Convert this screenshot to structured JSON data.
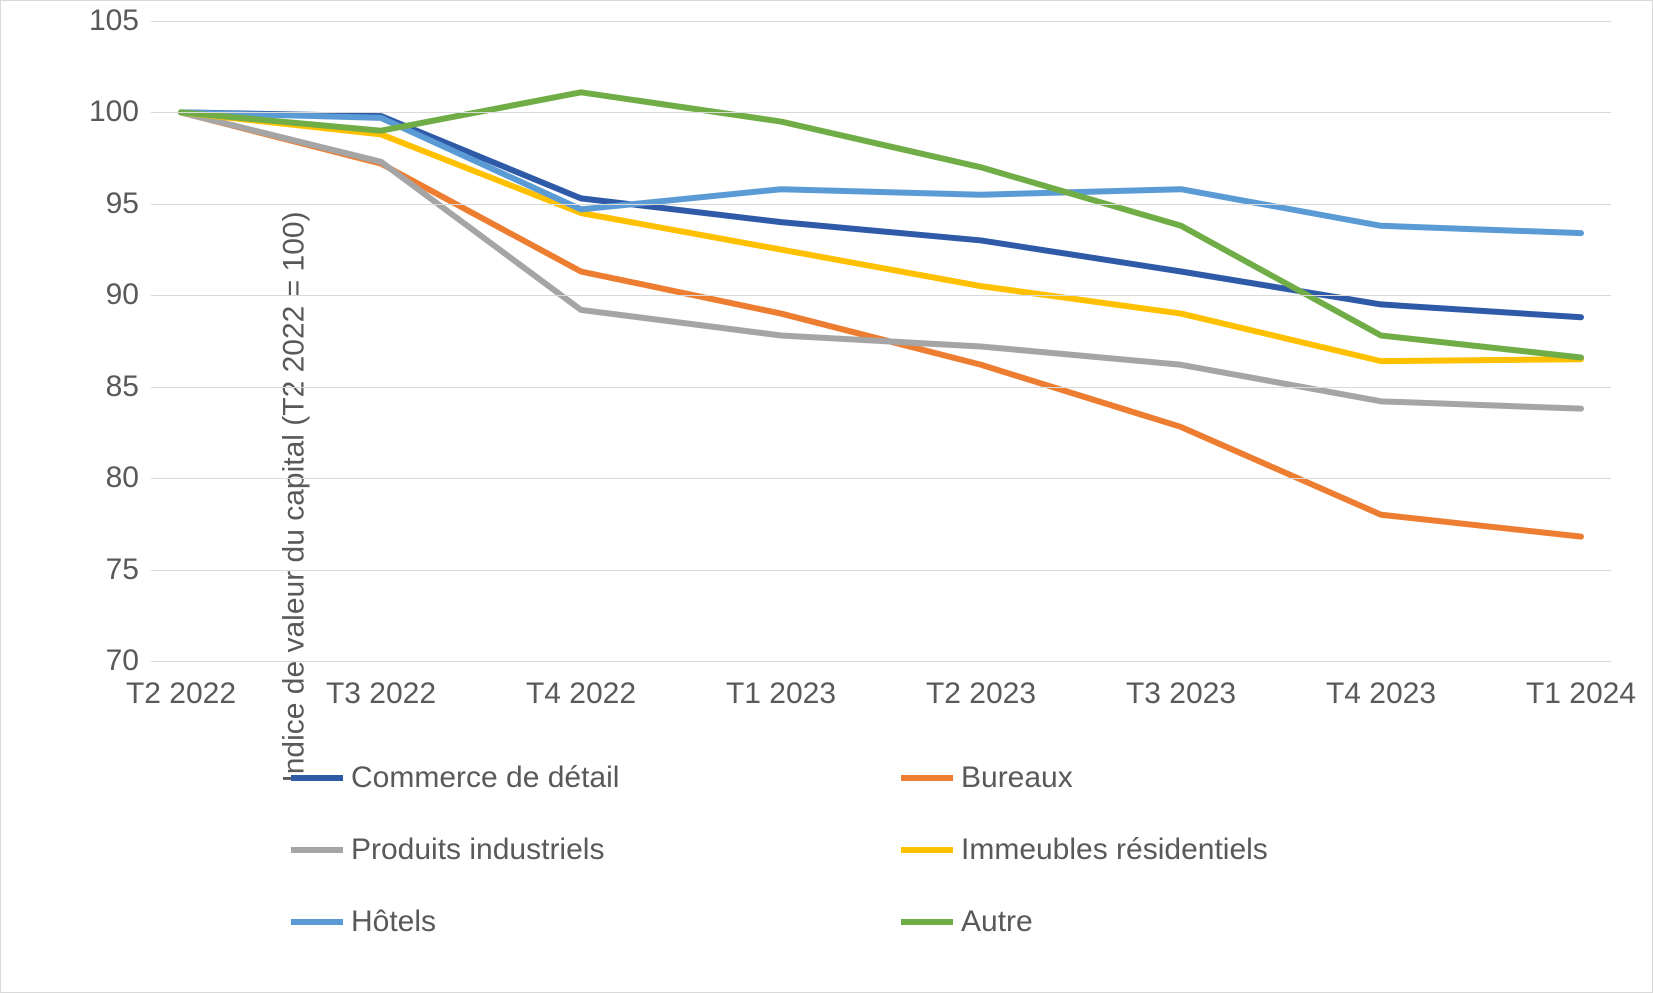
{
  "chart": {
    "type": "line",
    "y_axis_title": "Indice de valeur du capital (T2 2022 = 100)",
    "y_axis_title_fontsize": 30,
    "tick_fontsize": 30,
    "legend_fontsize": 30,
    "background_color": "#ffffff",
    "border_color": "#d9d9d9",
    "grid_color": "#d9d9d9",
    "text_color": "#595959",
    "line_width": 6,
    "ylim": [
      70,
      105
    ],
    "ytick_step": 5,
    "y_ticks": [
      70,
      75,
      80,
      85,
      90,
      95,
      100,
      105
    ],
    "categories": [
      "T2 2022",
      "T3 2022",
      "T4 2022",
      "T1 2023",
      "T2 2023",
      "T3 2023",
      "T4 2023",
      "T1 2024"
    ],
    "series": [
      {
        "key": "retail",
        "label": "Commerce de détail",
        "color": "#2e5aa8",
        "values": [
          100.0,
          99.8,
          95.3,
          94.0,
          93.0,
          91.3,
          89.5,
          88.8
        ]
      },
      {
        "key": "offices",
        "label": "Bureaux",
        "color": "#ed7d31",
        "values": [
          100.0,
          97.2,
          91.3,
          89.0,
          86.2,
          82.8,
          78.0,
          76.8
        ]
      },
      {
        "key": "industrial",
        "label": "Produits industriels",
        "color": "#a5a5a5",
        "values": [
          100.0,
          97.3,
          89.2,
          87.8,
          87.2,
          86.2,
          84.2,
          83.8
        ]
      },
      {
        "key": "residential",
        "label": "Immeubles résidentiels",
        "color": "#ffc000",
        "values": [
          100.0,
          98.8,
          94.5,
          92.5,
          90.5,
          89.0,
          86.4,
          86.5
        ]
      },
      {
        "key": "hotels",
        "label": "Hôtels",
        "color": "#5b9bd5",
        "values": [
          100.0,
          99.7,
          94.7,
          95.8,
          95.5,
          95.8,
          93.8,
          93.4
        ]
      },
      {
        "key": "other",
        "label": "Autre",
        "color": "#70ad47",
        "values": [
          100.0,
          99.0,
          101.1,
          99.5,
          97.0,
          93.8,
          87.8,
          86.6
        ]
      }
    ]
  }
}
